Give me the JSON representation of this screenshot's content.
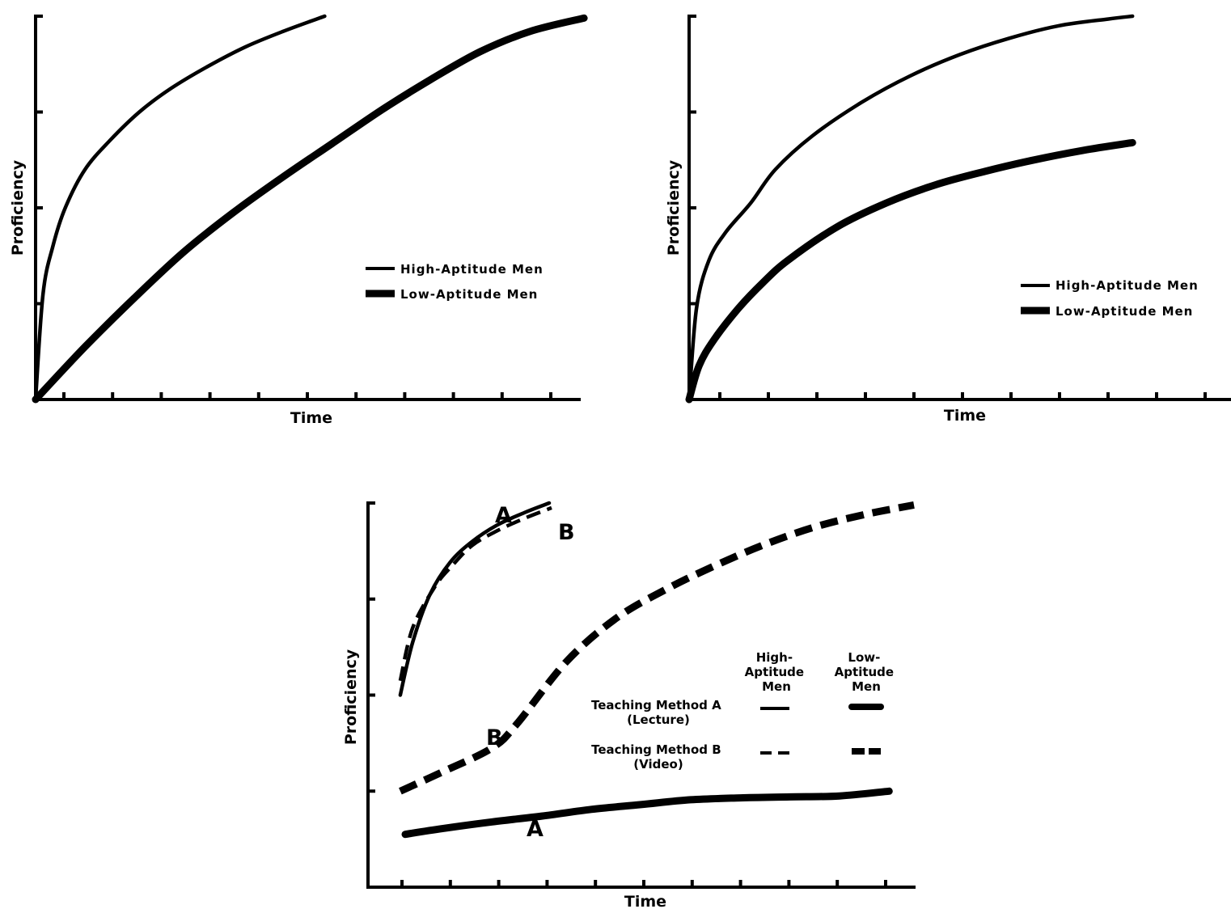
{
  "chart_data": [
    {
      "type": "line",
      "xlabel": "Time",
      "ylabel": "Proficiency",
      "xlim": [
        0,
        22
      ],
      "ylim": [
        0,
        4
      ],
      "x_ticks": 11,
      "y_ticks": 4,
      "legend_position": "center-right",
      "series": [
        {
          "name": "High-Aptitude Men",
          "style": "thin",
          "x": [
            0,
            0.3,
            0.7,
            1.2,
            2.0,
            3.0,
            4.2,
            5.5,
            7.0,
            8.5,
            10.0,
            11.7
          ],
          "y": [
            0,
            1.1,
            1.6,
            2.0,
            2.4,
            2.7,
            3.0,
            3.25,
            3.48,
            3.68,
            3.84,
            4.0
          ]
        },
        {
          "name": "Low-Aptitude Men",
          "style": "thick",
          "x": [
            0,
            2,
            4,
            6,
            8,
            10,
            12,
            14,
            16,
            18,
            20,
            22.2
          ],
          "y": [
            0,
            0.55,
            1.06,
            1.54,
            1.95,
            2.32,
            2.67,
            3.02,
            3.34,
            3.63,
            3.84,
            3.98
          ]
        }
      ]
    },
    {
      "type": "line",
      "xlabel": "Time",
      "ylabel": "Proficiency",
      "xlim": [
        0,
        22
      ],
      "ylim": [
        0,
        4
      ],
      "x_ticks": 11,
      "y_ticks": 4,
      "legend_position": "center-right",
      "series": [
        {
          "name": "High-Aptitude Men",
          "style": "thin",
          "x": [
            0,
            0.3,
            0.8,
            1.5,
            2.5,
            3.5,
            5,
            7,
            9,
            11,
            13,
            15,
            17,
            18
          ],
          "y": [
            0,
            0.95,
            1.45,
            1.75,
            2.05,
            2.4,
            2.75,
            3.1,
            3.38,
            3.6,
            3.77,
            3.9,
            3.97,
            4.0
          ]
        },
        {
          "name": "Low-Aptitude Men",
          "style": "thick",
          "x": [
            0,
            0.4,
            1,
            2,
            3,
            4,
            6,
            8,
            10,
            12,
            14,
            16,
            18
          ],
          "y": [
            0,
            0.35,
            0.62,
            0.95,
            1.22,
            1.45,
            1.8,
            2.05,
            2.24,
            2.38,
            2.5,
            2.6,
            2.68
          ]
        }
      ]
    },
    {
      "type": "line",
      "xlabel": "Time",
      "ylabel": "Proficiency",
      "xlim": [
        0,
        22
      ],
      "ylim": [
        0,
        4
      ],
      "x_ticks": 11,
      "y_ticks": 4,
      "legend": {
        "col_high": "High-Aptitude Men",
        "col_low": "Low-Aptitude Men",
        "row_a": "Teaching Method A (Lecture)",
        "row_b": "Teaching Method B (Video)"
      },
      "series": [
        {
          "label": "A",
          "method": "A",
          "aptitude": "high",
          "x": [
            1.3,
            1.8,
            2.5,
            3.3,
            4.2,
            5.2,
            6.3,
            7.3
          ],
          "y": [
            2.0,
            2.55,
            3.05,
            3.38,
            3.6,
            3.77,
            3.9,
            4.0
          ]
        },
        {
          "label": "B",
          "method": "B",
          "aptitude": "high",
          "x": [
            1.3,
            1.8,
            2.7,
            3.4,
            4.2,
            5.2,
            6.3,
            7.4
          ],
          "y": [
            2.15,
            2.7,
            3.13,
            3.35,
            3.56,
            3.71,
            3.84,
            3.95
          ]
        },
        {
          "label": "B",
          "method": "B",
          "aptitude": "low",
          "x": [
            1.3,
            3,
            5,
            6,
            8,
            10,
            12,
            14,
            16,
            18,
            20,
            22
          ],
          "y": [
            1.0,
            1.2,
            1.45,
            1.7,
            2.35,
            2.8,
            3.1,
            3.35,
            3.57,
            3.75,
            3.88,
            3.98
          ]
        },
        {
          "label": "A",
          "method": "A",
          "aptitude": "low",
          "x": [
            1.5,
            3,
            5,
            7,
            9,
            11,
            13,
            15,
            17,
            19,
            21
          ],
          "y": [
            0.55,
            0.61,
            0.68,
            0.74,
            0.81,
            0.86,
            0.91,
            0.93,
            0.94,
            0.95,
            1.0
          ]
        }
      ]
    }
  ]
}
